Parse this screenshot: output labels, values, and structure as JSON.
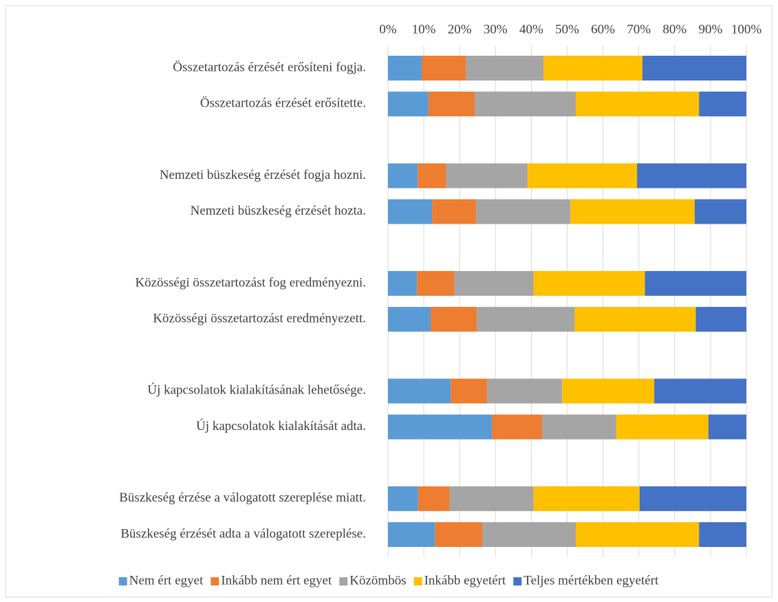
{
  "chart_data": {
    "type": "stacked_bar_horizontal_100",
    "categories": [
      "Összetartozás érzését erősíteni fogja.",
      "Összetartozás érzését erősítette.",
      null,
      "Nemzeti büszkeség érzését fogja hozni.",
      "Nemzeti büszkeség érzését hozta.",
      null,
      "Közösségi összetartozást fog eredményezni.",
      "Közösségi összetartozást eredményezett.",
      null,
      "Új kapcsolatok kialakításának lehetősége.",
      "Új kapcsolatok kialakítását adta.",
      null,
      "Büszkeség érzése a válogatott szereplése miatt.",
      "Büszkeség érzését adta a válogatott szereplése."
    ],
    "series": [
      {
        "name": "Nem ért egyet",
        "color": "#5b9bd5",
        "values": [
          9.4,
          11.3,
          null,
          8.3,
          12.3,
          null,
          8.1,
          11.9,
          null,
          17.5,
          29.0,
          null,
          8.4,
          13.1
        ]
      },
      {
        "name": "Inkább nem ért egyet",
        "color": "#ed7d31",
        "values": [
          12.3,
          12.9,
          null,
          7.9,
          12.3,
          null,
          10.4,
          12.9,
          null,
          10.2,
          14.0,
          null,
          8.8,
          13.2
        ]
      },
      {
        "name": "Közömbös",
        "color": "#a5a5a5",
        "values": [
          21.7,
          28.2,
          null,
          22.8,
          26.3,
          null,
          22.1,
          27.3,
          null,
          20.9,
          20.7,
          null,
          23.4,
          26.1
        ]
      },
      {
        "name": "Inkább egyetért",
        "color": "#ffc000",
        "values": [
          27.6,
          34.4,
          null,
          30.5,
          34.7,
          null,
          31.1,
          33.8,
          null,
          25.7,
          25.7,
          null,
          29.6,
          34.4
        ]
      },
      {
        "name": "Teljes mértékben egyetért",
        "color": "#4472c4",
        "values": [
          29.0,
          13.2,
          null,
          30.5,
          14.4,
          null,
          28.3,
          14.1,
          null,
          25.7,
          10.6,
          null,
          29.8,
          13.2
        ]
      }
    ],
    "xlim": [
      0,
      100
    ],
    "xticks": [
      {
        "value": 0,
        "label": "0%"
      },
      {
        "value": 10,
        "label": "10%"
      },
      {
        "value": 20,
        "label": "20%"
      },
      {
        "value": 30,
        "label": "30%"
      },
      {
        "value": 40,
        "label": "40%"
      },
      {
        "value": 50,
        "label": "50%"
      },
      {
        "value": 60,
        "label": "60%"
      },
      {
        "value": 70,
        "label": "70%"
      },
      {
        "value": 80,
        "label": "80%"
      },
      {
        "value": 90,
        "label": "90%"
      },
      {
        "value": 100,
        "label": "100%"
      }
    ],
    "grid": true,
    "legend": "bottom"
  }
}
